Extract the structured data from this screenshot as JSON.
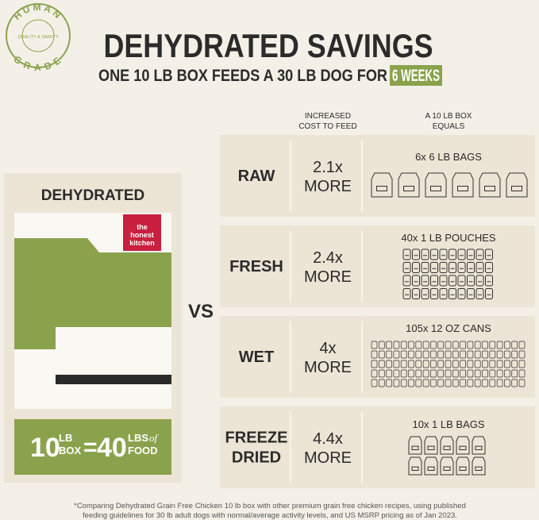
{
  "badge": {
    "top": "HUMAN",
    "middle": "QUALITY & SAFETY",
    "bottom": "GRADE"
  },
  "header": {
    "title": "DEHYDRATED SAVINGS",
    "subtitle": "ONE 10 LB BOX FEEDS A 30 LB DOG FOR",
    "highlight": "6 WEEKS"
  },
  "product": {
    "label": "DEHYDRATED",
    "brand": [
      "the",
      "honest",
      "kitchen"
    ],
    "equation": {
      "left_number": "10",
      "left_unit_top": "LB",
      "left_unit_bottom": "BOX",
      "equals": "=",
      "right_number": "40",
      "right_unit_top": "LBS",
      "right_unit_connector": "of",
      "right_unit_bottom": "FOOD"
    }
  },
  "vs": "VS",
  "columns": [
    [
      "INCREASED",
      "COST TO FEED"
    ],
    [
      "A 10 LB BOX",
      "EQUALS"
    ]
  ],
  "rows": [
    {
      "name": [
        "RAW"
      ],
      "cost": [
        "2.1x",
        "MORE"
      ],
      "equals": "6x 6 LB BAGS"
    },
    {
      "name": [
        "FRESH"
      ],
      "cost": [
        "2.4x",
        "MORE"
      ],
      "equals": "40x 1 LB POUCHES"
    },
    {
      "name": [
        "WET"
      ],
      "cost": [
        "4x",
        "MORE"
      ],
      "equals": "105x 12 OZ CANS"
    },
    {
      "name": [
        "FREEZE",
        "DRIED"
      ],
      "cost": [
        "4.4x",
        "MORE"
      ],
      "equals": "10x 1 LB BAGS"
    }
  ],
  "footnote": [
    "*Comparing Dehydrated Grain Free Chicken 10 lb box with other premium grain free chicken recipes, using published",
    "feeding guidelines for 30 lb adult dogs with normal/average activity levels, and US MSRP pricing as of Jan 2023."
  ]
}
